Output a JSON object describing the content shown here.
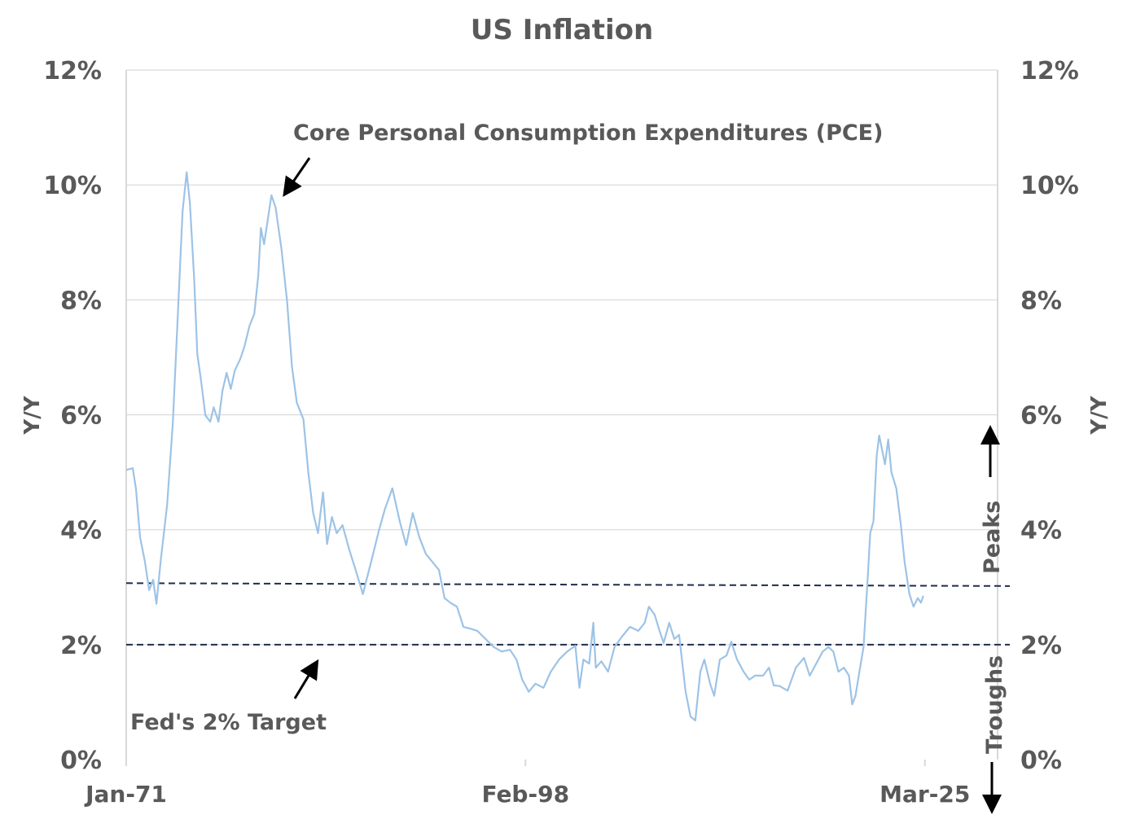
{
  "chart_data": {
    "type": "line",
    "title": "US Inflation",
    "ylabel_left": "Y/Y",
    "ylabel_right": "Y/Y",
    "xlabel": "",
    "ylim": [
      0,
      12
    ],
    "xlim": [
      1971.0,
      2030.1
    ],
    "yticks": [
      0,
      2,
      4,
      6,
      8,
      10,
      12
    ],
    "ytick_labels": [
      "0%",
      "2%",
      "4%",
      "6%",
      "8%",
      "10%",
      "12%"
    ],
    "xticks": [
      {
        "value": 1971.0,
        "label": "Jan-71"
      },
      {
        "value": 1998.08,
        "label": "Feb-98"
      },
      {
        "value": 2025.17,
        "label": "Mar-25"
      }
    ],
    "grid": true,
    "colors": {
      "series": "#9dc3e6",
      "reference": "#1f2d4d",
      "grid": "#d9d9d9",
      "text": "#595959",
      "arrow": "#000000"
    },
    "reference_lines": [
      {
        "value": 2.0
      },
      {
        "value_start": 3.07,
        "value_end": 3.02
      }
    ],
    "annotations": {
      "series_label": "Core Personal Consumption Expenditures (PCE)",
      "target_label": "Fed's 2% Target",
      "peaks_label": "Peaks",
      "troughs_label": "Troughs"
    },
    "series": [
      {
        "name": "Core PCE Y/Y",
        "points": [
          [
            1971.0,
            5.04
          ],
          [
            1971.44,
            5.07
          ],
          [
            1971.66,
            4.72
          ],
          [
            1971.94,
            3.87
          ],
          [
            1972.27,
            3.44
          ],
          [
            1972.55,
            2.95
          ],
          [
            1972.83,
            3.13
          ],
          [
            1973.05,
            2.71
          ],
          [
            1973.33,
            3.44
          ],
          [
            1973.77,
            4.43
          ],
          [
            1974.16,
            5.85
          ],
          [
            1974.49,
            7.69
          ],
          [
            1974.82,
            9.54
          ],
          [
            1975.1,
            10.22
          ],
          [
            1975.32,
            9.68
          ],
          [
            1975.6,
            8.4
          ],
          [
            1975.82,
            7.06
          ],
          [
            1976.09,
            6.56
          ],
          [
            1976.37,
            5.99
          ],
          [
            1976.7,
            5.88
          ],
          [
            1976.93,
            6.13
          ],
          [
            1977.26,
            5.88
          ],
          [
            1977.53,
            6.42
          ],
          [
            1977.81,
            6.73
          ],
          [
            1978.09,
            6.45
          ],
          [
            1978.36,
            6.77
          ],
          [
            1978.75,
            6.98
          ],
          [
            1979.03,
            7.2
          ],
          [
            1979.36,
            7.55
          ],
          [
            1979.69,
            7.76
          ],
          [
            1979.96,
            8.43
          ],
          [
            1980.13,
            9.25
          ],
          [
            1980.35,
            8.97
          ],
          [
            1980.85,
            9.82
          ],
          [
            1981.13,
            9.61
          ],
          [
            1981.52,
            8.9
          ],
          [
            1981.91,
            7.98
          ],
          [
            1982.24,
            6.84
          ],
          [
            1982.57,
            6.21
          ],
          [
            1983.02,
            5.92
          ],
          [
            1983.35,
            5.0
          ],
          [
            1983.68,
            4.29
          ],
          [
            1984.01,
            3.94
          ],
          [
            1984.35,
            4.65
          ],
          [
            1984.62,
            3.75
          ],
          [
            1984.95,
            4.22
          ],
          [
            1985.28,
            3.94
          ],
          [
            1985.67,
            4.08
          ],
          [
            1986.12,
            3.66
          ],
          [
            1986.56,
            3.3
          ],
          [
            1987.05,
            2.88
          ],
          [
            1987.61,
            3.44
          ],
          [
            1988.16,
            4.01
          ],
          [
            1988.55,
            4.36
          ],
          [
            1989.05,
            4.72
          ],
          [
            1989.55,
            4.15
          ],
          [
            1989.99,
            3.73
          ],
          [
            1990.43,
            4.29
          ],
          [
            1990.88,
            3.87
          ],
          [
            1991.32,
            3.58
          ],
          [
            1991.76,
            3.44
          ],
          [
            1992.21,
            3.3
          ],
          [
            1992.59,
            2.81
          ],
          [
            1992.98,
            2.73
          ],
          [
            1993.43,
            2.66
          ],
          [
            1993.87,
            2.31
          ],
          [
            1994.31,
            2.28
          ],
          [
            1994.81,
            2.24
          ],
          [
            1995.37,
            2.1
          ],
          [
            1995.92,
            1.96
          ],
          [
            1996.47,
            1.88
          ],
          [
            1997.03,
            1.91
          ],
          [
            1997.47,
            1.74
          ],
          [
            1997.86,
            1.39
          ],
          [
            1998.3,
            1.18
          ],
          [
            1998.75,
            1.32
          ],
          [
            1999.3,
            1.25
          ],
          [
            1999.8,
            1.53
          ],
          [
            2000.35,
            1.74
          ],
          [
            2000.91,
            1.88
          ],
          [
            2001.46,
            1.98
          ],
          [
            2001.74,
            1.25
          ],
          [
            2002.01,
            1.74
          ],
          [
            2002.4,
            1.67
          ],
          [
            2002.68,
            2.38
          ],
          [
            2002.85,
            1.6
          ],
          [
            2003.23,
            1.71
          ],
          [
            2003.68,
            1.53
          ],
          [
            2004.12,
            1.96
          ],
          [
            2004.62,
            2.14
          ],
          [
            2005.17,
            2.31
          ],
          [
            2005.73,
            2.24
          ],
          [
            2006.17,
            2.38
          ],
          [
            2006.45,
            2.66
          ],
          [
            2006.84,
            2.52
          ],
          [
            2007.17,
            2.24
          ],
          [
            2007.45,
            2.03
          ],
          [
            2007.83,
            2.38
          ],
          [
            2008.17,
            2.1
          ],
          [
            2008.5,
            2.17
          ],
          [
            2008.94,
            1.18
          ],
          [
            2009.27,
            0.75
          ],
          [
            2009.6,
            0.68
          ],
          [
            2009.94,
            1.53
          ],
          [
            2010.21,
            1.74
          ],
          [
            2010.6,
            1.32
          ],
          [
            2010.88,
            1.11
          ],
          [
            2011.26,
            1.74
          ],
          [
            2011.71,
            1.81
          ],
          [
            2012.04,
            2.05
          ],
          [
            2012.43,
            1.74
          ],
          [
            2012.87,
            1.53
          ],
          [
            2013.26,
            1.39
          ],
          [
            2013.65,
            1.46
          ],
          [
            2014.2,
            1.46
          ],
          [
            2014.59,
            1.6
          ],
          [
            2014.92,
            1.29
          ],
          [
            2015.31,
            1.28
          ],
          [
            2015.86,
            1.2
          ],
          [
            2016.42,
            1.6
          ],
          [
            2016.97,
            1.77
          ],
          [
            2017.36,
            1.46
          ],
          [
            2017.8,
            1.67
          ],
          [
            2018.24,
            1.88
          ],
          [
            2018.63,
            1.96
          ],
          [
            2018.96,
            1.88
          ],
          [
            2019.3,
            1.53
          ],
          [
            2019.68,
            1.6
          ],
          [
            2020.02,
            1.46
          ],
          [
            2020.24,
            0.96
          ],
          [
            2020.46,
            1.11
          ],
          [
            2020.68,
            1.46
          ],
          [
            2021.01,
            1.96
          ],
          [
            2021.29,
            3.16
          ],
          [
            2021.46,
            3.94
          ],
          [
            2021.68,
            4.15
          ],
          [
            2021.9,
            5.28
          ],
          [
            2022.07,
            5.64
          ],
          [
            2022.29,
            5.36
          ],
          [
            2022.46,
            5.14
          ],
          [
            2022.68,
            5.57
          ],
          [
            2022.9,
            5.0
          ],
          [
            2023.23,
            4.72
          ],
          [
            2023.51,
            4.15
          ],
          [
            2023.79,
            3.44
          ],
          [
            2024.12,
            2.88
          ],
          [
            2024.4,
            2.66
          ],
          [
            2024.68,
            2.81
          ],
          [
            2024.9,
            2.73
          ],
          [
            2025.06,
            2.85
          ]
        ]
      }
    ]
  }
}
